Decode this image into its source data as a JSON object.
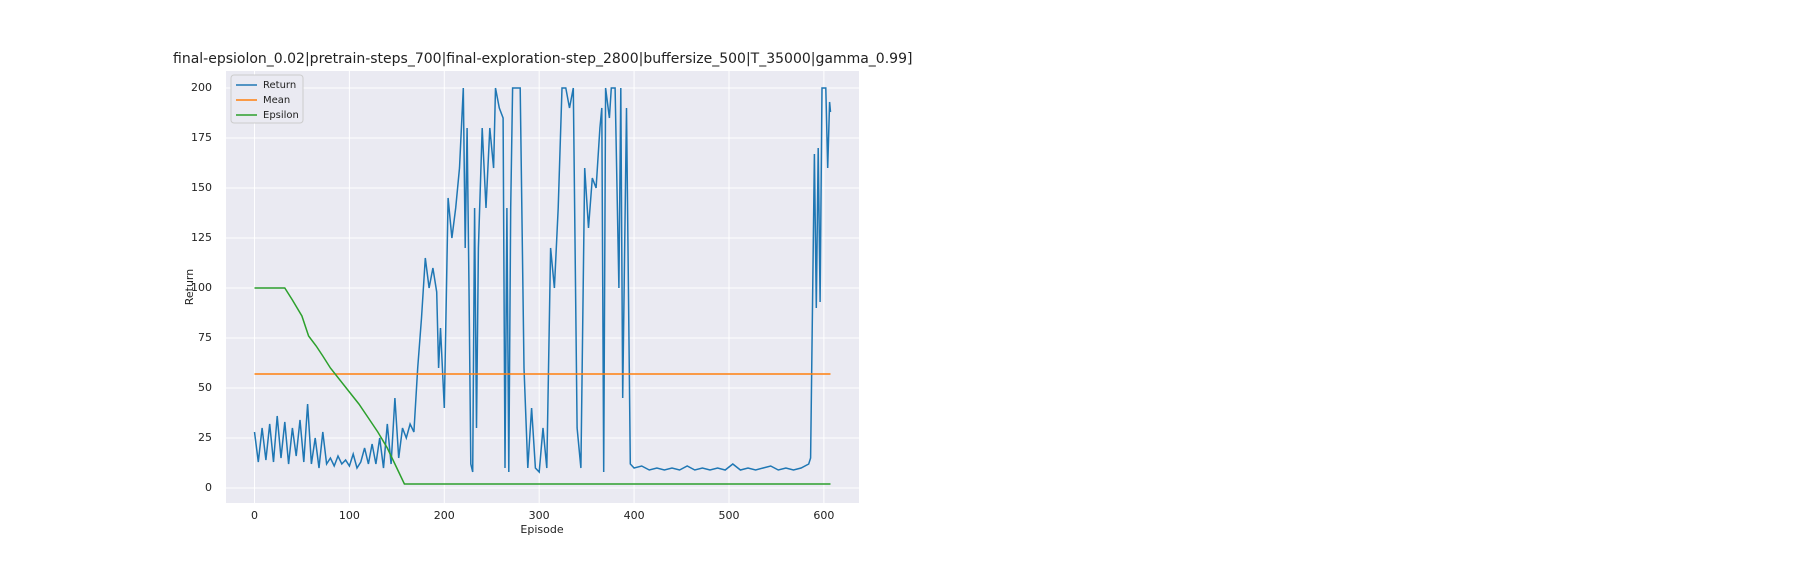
{
  "chart_data": {
    "type": "line",
    "title": "final-epsiolon_0.02|pretrain-steps_700|final-exploration-step_2800|buffersize_500|T_35000|gamma_0.99]",
    "x_label": "Episode",
    "y_label": "Return",
    "xlim": [
      -30,
      637
    ],
    "ylim": [
      -7.5,
      208.5
    ],
    "xticks": [
      0,
      100,
      200,
      300,
      400,
      500,
      600
    ],
    "yticks": [
      0,
      25,
      50,
      75,
      100,
      125,
      150,
      175,
      200
    ],
    "grid": true,
    "legend": "upper-left",
    "series": [
      {
        "name": "Return",
        "color": "#1f77b4",
        "x": [
          0,
          4,
          8,
          12,
          16,
          20,
          24,
          28,
          32,
          36,
          40,
          44,
          48,
          52,
          56,
          60,
          64,
          68,
          72,
          76,
          80,
          84,
          88,
          92,
          96,
          100,
          104,
          108,
          112,
          116,
          120,
          124,
          128,
          132,
          136,
          140,
          144,
          148,
          152,
          156,
          160,
          164,
          168,
          172,
          176,
          180,
          184,
          188,
          192,
          194,
          196,
          200,
          204,
          208,
          212,
          216,
          220,
          222,
          224,
          226,
          228,
          230,
          232,
          234,
          236,
          240,
          244,
          248,
          252,
          254,
          258,
          262,
          264,
          266,
          268,
          270,
          272,
          276,
          280,
          284,
          288,
          292,
          296,
          300,
          304,
          308,
          312,
          316,
          320,
          324,
          328,
          332,
          336,
          340,
          344,
          348,
          352,
          356,
          360,
          364,
          366,
          368,
          370,
          374,
          376,
          380,
          384,
          386,
          388,
          392,
          396,
          400,
          408,
          416,
          424,
          432,
          440,
          448,
          456,
          464,
          472,
          480,
          488,
          496,
          504,
          512,
          520,
          528,
          536,
          544,
          552,
          560,
          568,
          576,
          584,
          586,
          590,
          592,
          594,
          596,
          598,
          602,
          604,
          606,
          607
        ],
        "values": [
          28,
          13,
          30,
          14,
          32,
          13,
          36,
          15,
          33,
          12,
          30,
          16,
          34,
          13,
          42,
          12,
          25,
          10,
          28,
          12,
          15,
          11,
          16,
          12,
          14,
          11,
          17,
          10,
          13,
          20,
          12,
          22,
          12,
          25,
          10,
          32,
          12,
          45,
          15,
          30,
          25,
          32,
          28,
          60,
          85,
          115,
          100,
          110,
          98,
          60,
          80,
          40,
          145,
          125,
          140,
          160,
          200,
          120,
          180,
          100,
          12,
          8,
          140,
          30,
          120,
          180,
          140,
          180,
          160,
          200,
          190,
          185,
          10,
          140,
          8,
          140,
          200,
          200,
          200,
          60,
          10,
          40,
          10,
          8,
          30,
          10,
          120,
          100,
          140,
          200,
          200,
          190,
          200,
          30,
          10,
          160,
          130,
          155,
          150,
          180,
          190,
          8,
          200,
          185,
          200,
          200,
          100,
          200,
          45,
          190,
          12,
          10,
          11,
          9,
          10,
          9,
          10,
          9,
          11,
          9,
          10,
          9,
          10,
          9,
          12,
          9,
          10,
          9,
          10,
          11,
          9,
          10,
          9,
          10,
          12,
          15,
          167,
          90,
          170,
          93,
          200,
          200,
          160,
          193,
          188
        ]
      },
      {
        "name": "Mean",
        "color": "#ff7f0e",
        "x": [
          0,
          607
        ],
        "values": [
          57,
          57
        ]
      },
      {
        "name": "Epsilon",
        "color": "#2ca02c",
        "x": [
          0,
          32,
          40,
          50,
          57,
          65,
          72,
          80,
          90,
          100,
          110,
          120,
          130,
          140,
          150,
          158,
          607
        ],
        "values": [
          100,
          100,
          94,
          86,
          76,
          71,
          66,
          60,
          54,
          48,
          42,
          35,
          28,
          20,
          10,
          2,
          2
        ]
      }
    ]
  }
}
